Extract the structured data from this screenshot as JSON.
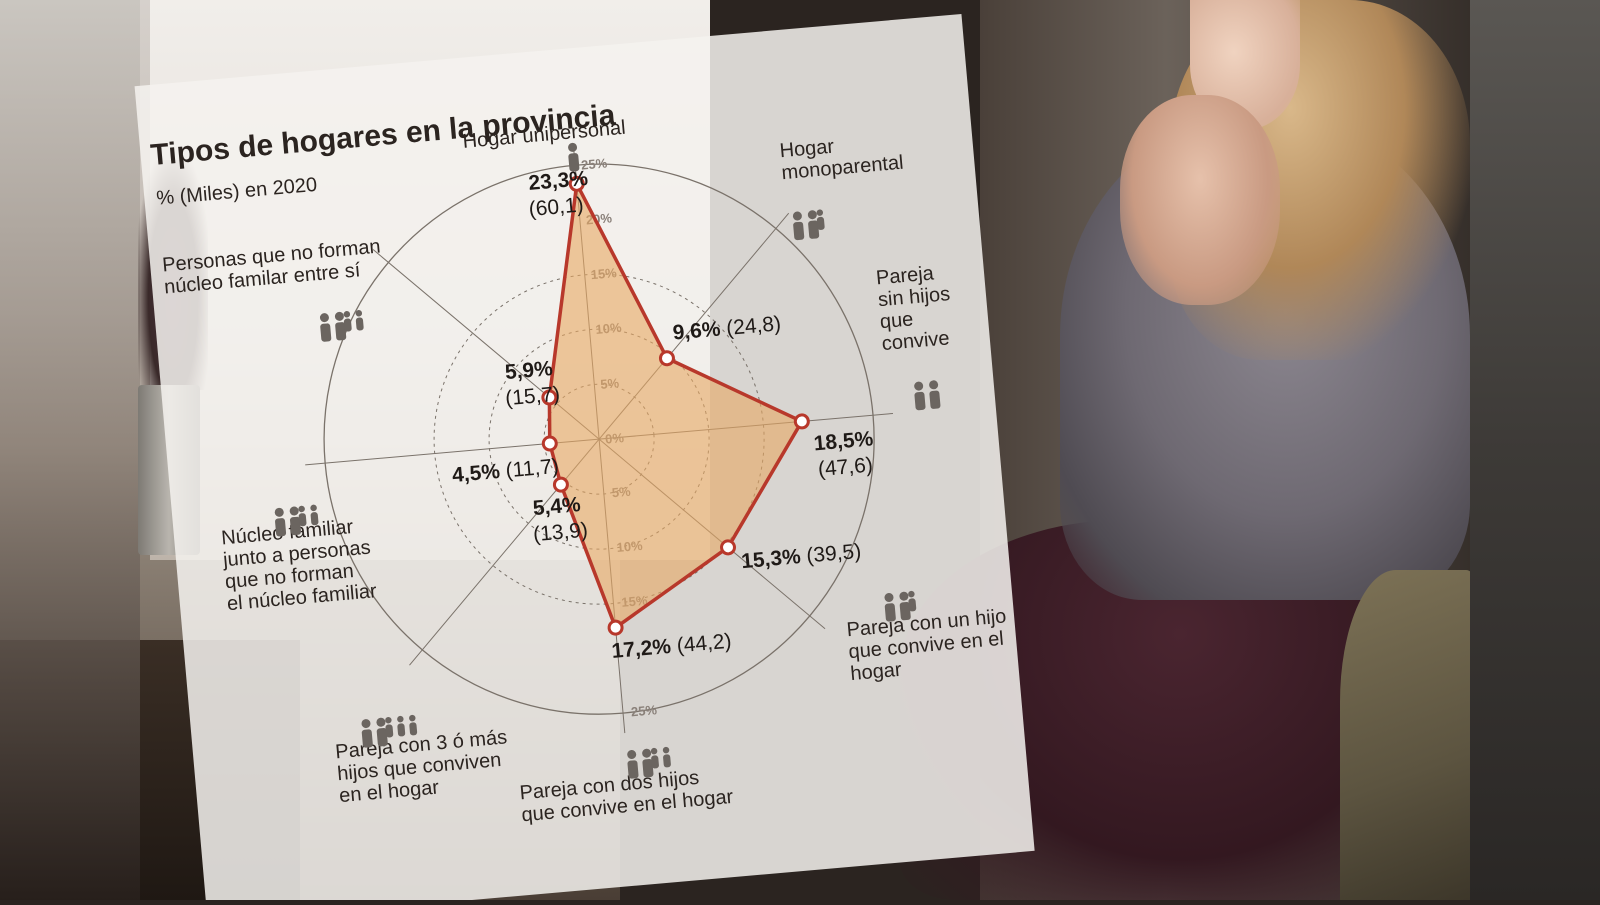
{
  "chart_data": {
    "type": "radar",
    "title": "Tipos de hogares en la provincia",
    "subtitle": "% (Miles) en 2020",
    "rings": [
      "5%",
      "10%",
      "15%",
      "25%"
    ],
    "ring_values": [
      5,
      10,
      15,
      25
    ],
    "rmax": 25,
    "ring_labels_upper": [
      "0%",
      "5%",
      "10%",
      "15%",
      "20%",
      "25%"
    ],
    "ring_labels_lower": [
      "5%",
      "10%",
      "15%",
      "25%"
    ],
    "categories": [
      {
        "label_lines": [
          "Hogar unipersonal"
        ],
        "pct": 23.3,
        "pct_label": "23,3%",
        "thousands_label": "(60,1)",
        "icon": "single-person-icon"
      },
      {
        "label_lines": [
          "Hogar",
          "monoparental"
        ],
        "pct": 9.6,
        "pct_label": "9,6%",
        "thousands_label": "(24,8)",
        "icon": "single-parent-family-icon"
      },
      {
        "label_lines": [
          "Pareja",
          "sin hijos",
          "que",
          "convive"
        ],
        "pct": 18.5,
        "pct_label": "18,5%",
        "thousands_label": "(47,6)",
        "icon": "couple-icon"
      },
      {
        "label_lines": [
          "Pareja con un hijo",
          "que convive en el",
          "hogar"
        ],
        "pct": 15.3,
        "pct_label": "15,3%",
        "thousands_label": "(39,5)",
        "icon": "couple-one-child-icon"
      },
      {
        "label_lines": [
          "Pareja con dos hijos",
          "que convive en el hogar"
        ],
        "pct": 17.2,
        "pct_label": "17,2%",
        "thousands_label": "(44,2)",
        "icon": "couple-two-children-icon"
      },
      {
        "label_lines": [
          "Pareja con 3 ó más",
          "hijos que conviven",
          "en el hogar"
        ],
        "pct": 5.4,
        "pct_label": "5,4%",
        "thousands_label": "(13,9)",
        "icon": "couple-three-plus-children-icon"
      },
      {
        "label_lines": [
          "Núcleo familiar",
          "junto a personas",
          "que no forman",
          "el núcleo familiar"
        ],
        "pct": 4.5,
        "pct_label": "4,5%",
        "thousands_label": "(11,7)",
        "icon": "family-with-others-icon"
      },
      {
        "label_lines": [
          "Personas que no forman",
          "núcleo familar entre sí"
        ],
        "pct": 5.9,
        "pct_label": "5,9%",
        "thousands_label": "(15,7)",
        "icon": "unrelated-people-icon"
      }
    ],
    "colors": {
      "line": "#b8382b",
      "fill": "#e8a862",
      "grid": "#7a726a"
    }
  },
  "background": {
    "description_icons": [
      "plant-icon",
      "person-icon"
    ],
    "colors": {
      "sweater": "#6e6972",
      "hair": "#c79d6b",
      "wall": "#e2ddd8"
    }
  }
}
